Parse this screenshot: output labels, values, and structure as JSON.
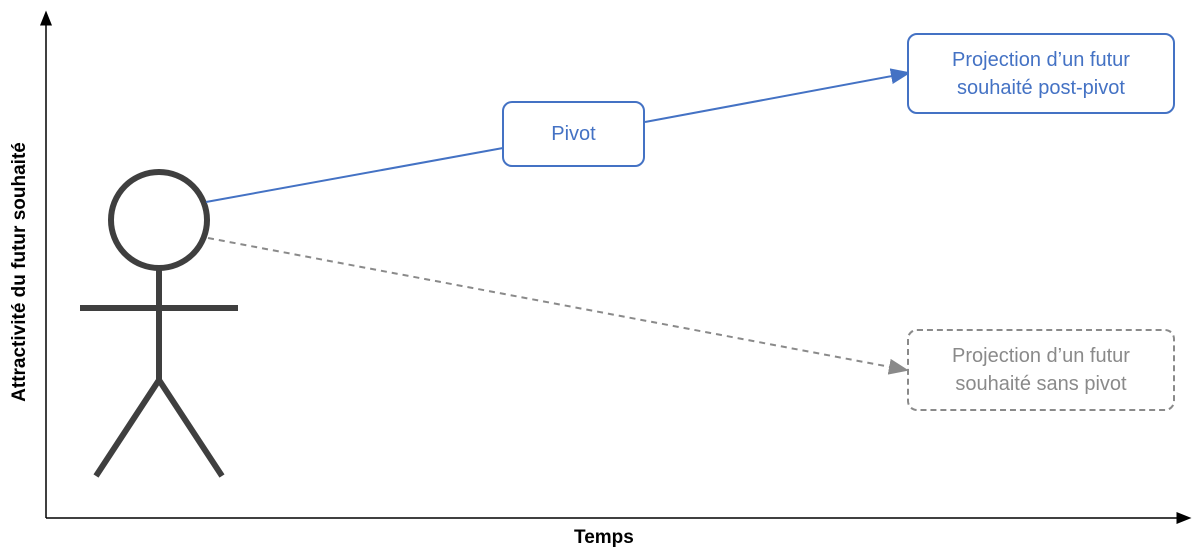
{
  "y_axis_label": "Attractivité du futur souhaité",
  "x_axis_label": "Temps",
  "pivot_box": {
    "label": "Pivot"
  },
  "post_pivot_box": {
    "line1": "Projection d’un futur",
    "line2": "souhaité post-pivot"
  },
  "no_pivot_box": {
    "line1": "Projection d’un futur",
    "line2": "souhaité sans pivot"
  },
  "colors": {
    "blue": "#4472c4",
    "grey": "#8a8a8a",
    "figure": "#3f3f3f",
    "axis": "#000000"
  }
}
